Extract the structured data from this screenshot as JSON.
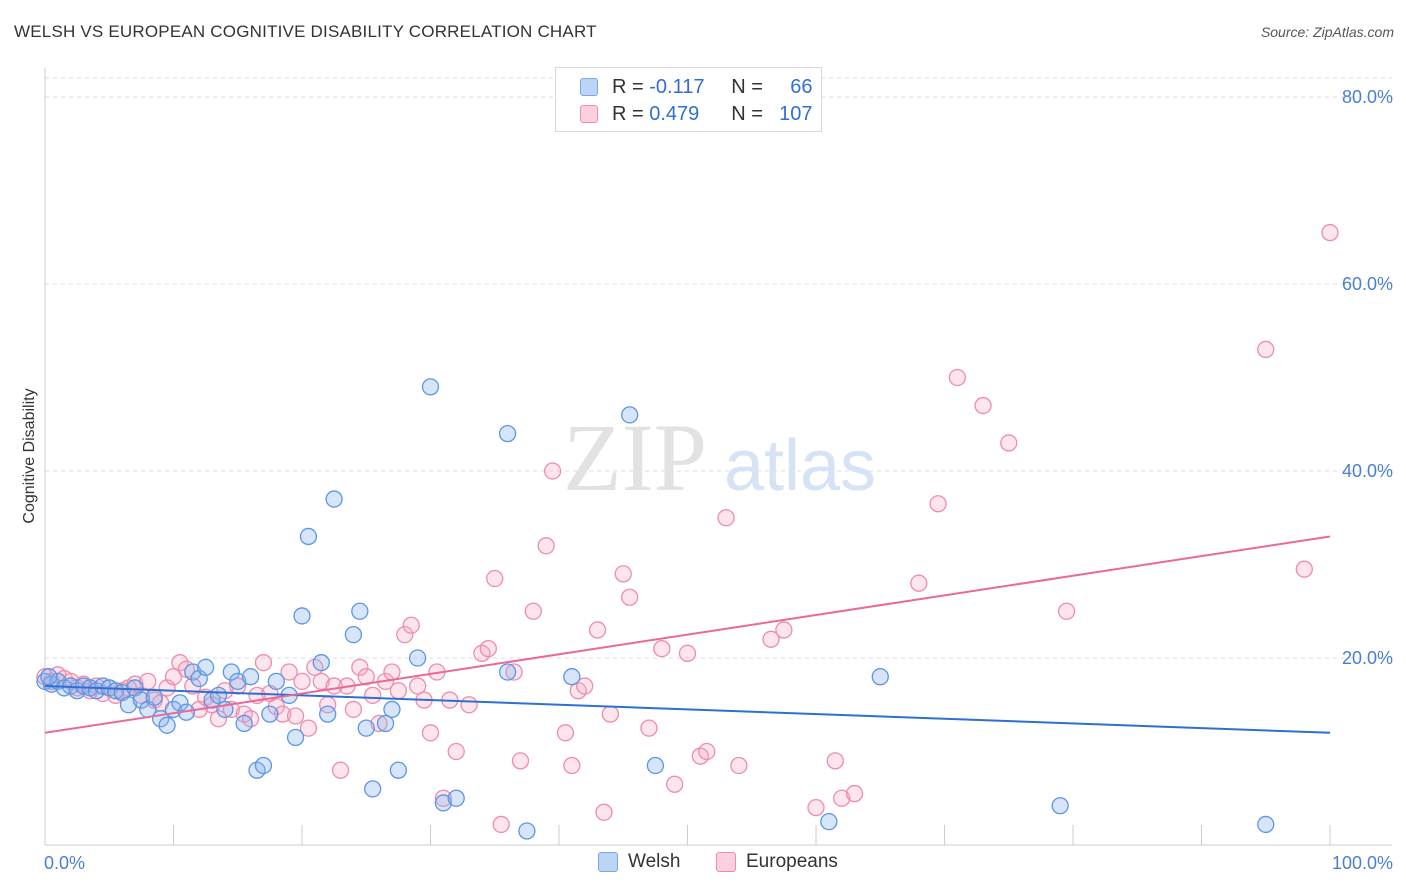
{
  "title": "WELSH VS EUROPEAN COGNITIVE DISABILITY CORRELATION CHART",
  "source": "Source: ZipAtlas.com",
  "watermark": {
    "zip": "ZIP",
    "atlas": "atlas"
  },
  "colors": {
    "welsh": "#5b95e6",
    "europeans": "#f08bab",
    "welsh_line": "#2f6fd1",
    "europeans_line": "#e8699a",
    "tick_label": "#4a7fd0"
  },
  "legend": {
    "welsh": {
      "r_label": "R =",
      "r_value": "-0.117",
      "n_label": "N =",
      "n_value": "66"
    },
    "europeans": {
      "r_label": "R =",
      "r_value": "0.479",
      "n_label": "N =",
      "n_value": "107"
    }
  },
  "bottom_legend": {
    "welsh": "Welsh",
    "europeans": "Europeans"
  },
  "chart_data": {
    "type": "scatter",
    "ylabel": "Cognitive Disability",
    "x_tick_labels": [
      "0.0%",
      "100.0%"
    ],
    "y_tick_labels": [
      "20.0%",
      "40.0%",
      "60.0%",
      "80.0%"
    ],
    "y_ticks": [
      20,
      40,
      60,
      80
    ],
    "xlim": [
      0,
      100
    ],
    "ylim": [
      0,
      82
    ],
    "grid": true,
    "legend_position": "top-center",
    "series": [
      {
        "name": "Welsh",
        "trend": [
          [
            0,
            17.0
          ],
          [
            100,
            12.0
          ]
        ],
        "points": [
          [
            0.0,
            17.5
          ],
          [
            0.5,
            17.2
          ],
          [
            1.0,
            17.5
          ],
          [
            1.5,
            16.8
          ],
          [
            2.0,
            17.0
          ],
          [
            2.5,
            16.5
          ],
          [
            3.0,
            17.0
          ],
          [
            3.5,
            16.8
          ],
          [
            4.0,
            16.5
          ],
          [
            4.5,
            17.0
          ],
          [
            5.0,
            16.8
          ],
          [
            5.5,
            16.5
          ],
          [
            6.0,
            16.3
          ],
          [
            6.5,
            15.0
          ],
          [
            7.0,
            16.8
          ],
          [
            7.5,
            15.5
          ],
          [
            8.0,
            14.5
          ],
          [
            8.5,
            15.8
          ],
          [
            9.0,
            13.5
          ],
          [
            9.5,
            12.8
          ],
          [
            10.0,
            14.5
          ],
          [
            10.5,
            15.2
          ],
          [
            11.0,
            14.2
          ],
          [
            11.5,
            18.5
          ],
          [
            12.0,
            17.8
          ],
          [
            12.5,
            19.0
          ],
          [
            13.0,
            15.5
          ],
          [
            13.5,
            16.0
          ],
          [
            14.0,
            14.5
          ],
          [
            14.5,
            18.5
          ],
          [
            15.0,
            17.5
          ],
          [
            15.5,
            13.0
          ],
          [
            16.0,
            18.0
          ],
          [
            16.5,
            8.0
          ],
          [
            17.0,
            8.5
          ],
          [
            17.5,
            14.0
          ],
          [
            18.0,
            17.5
          ],
          [
            19.0,
            16.0
          ],
          [
            19.5,
            11.5
          ],
          [
            20.0,
            24.5
          ],
          [
            20.5,
            33.0
          ],
          [
            21.5,
            19.5
          ],
          [
            22.0,
            14.0
          ],
          [
            22.5,
            37.0
          ],
          [
            24.0,
            22.5
          ],
          [
            24.5,
            25.0
          ],
          [
            25.0,
            12.5
          ],
          [
            25.5,
            6.0
          ],
          [
            26.5,
            13.0
          ],
          [
            27.0,
            14.5
          ],
          [
            27.5,
            8.0
          ],
          [
            29.0,
            20.0
          ],
          [
            30.0,
            49.0
          ],
          [
            31.0,
            4.5
          ],
          [
            32.0,
            5.0
          ],
          [
            36.0,
            44.0
          ],
          [
            37.5,
            1.5
          ],
          [
            36.0,
            18.5
          ],
          [
            41.0,
            18.0
          ],
          [
            45.5,
            46.0
          ],
          [
            47.5,
            8.5
          ],
          [
            65.0,
            18.0
          ],
          [
            61.0,
            2.5
          ],
          [
            79.0,
            4.2
          ],
          [
            95.0,
            2.2
          ],
          [
            0.3,
            18.0
          ]
        ]
      },
      {
        "name": "Europeans",
        "trend": [
          [
            0,
            12.0
          ],
          [
            100,
            33.0
          ]
        ],
        "points": [
          [
            0.0,
            18.0
          ],
          [
            0.5,
            17.5
          ],
          [
            1.0,
            18.2
          ],
          [
            1.5,
            17.8
          ],
          [
            2.0,
            17.5
          ],
          [
            2.5,
            16.8
          ],
          [
            3.0,
            17.2
          ],
          [
            3.5,
            16.5
          ],
          [
            4.0,
            17.0
          ],
          [
            4.5,
            16.2
          ],
          [
            5.0,
            16.8
          ],
          [
            5.5,
            16.0
          ],
          [
            6.0,
            16.5
          ],
          [
            6.5,
            16.8
          ],
          [
            7.0,
            17.2
          ],
          [
            7.5,
            16.0
          ],
          [
            8.0,
            17.5
          ],
          [
            8.5,
            15.5
          ],
          [
            9.0,
            15.2
          ],
          [
            9.5,
            16.8
          ],
          [
            10.0,
            18.0
          ],
          [
            10.5,
            19.5
          ],
          [
            11.0,
            18.8
          ],
          [
            11.5,
            17.0
          ],
          [
            12.0,
            14.5
          ],
          [
            12.5,
            15.8
          ],
          [
            13.0,
            15.0
          ],
          [
            13.5,
            13.5
          ],
          [
            14.0,
            16.5
          ],
          [
            14.5,
            14.5
          ],
          [
            15.0,
            17.0
          ],
          [
            15.5,
            14.0
          ],
          [
            16.0,
            13.5
          ],
          [
            16.5,
            16.0
          ],
          [
            17.0,
            19.5
          ],
          [
            17.5,
            16.2
          ],
          [
            18.0,
            14.8
          ],
          [
            18.5,
            14.0
          ],
          [
            19.0,
            18.5
          ],
          [
            19.5,
            13.8
          ],
          [
            20.0,
            17.5
          ],
          [
            20.5,
            12.5
          ],
          [
            21.0,
            19.0
          ],
          [
            21.5,
            17.5
          ],
          [
            22.0,
            15.0
          ],
          [
            22.5,
            17.0
          ],
          [
            23.0,
            8.0
          ],
          [
            23.5,
            17.0
          ],
          [
            24.0,
            14.5
          ],
          [
            24.5,
            19.0
          ],
          [
            25.0,
            18.0
          ],
          [
            25.5,
            16.0
          ],
          [
            26.0,
            13.0
          ],
          [
            26.5,
            17.5
          ],
          [
            27.0,
            18.5
          ],
          [
            27.5,
            16.5
          ],
          [
            28.0,
            22.5
          ],
          [
            28.5,
            23.5
          ],
          [
            29.0,
            17.0
          ],
          [
            29.5,
            15.5
          ],
          [
            30.0,
            12.0
          ],
          [
            30.5,
            18.5
          ],
          [
            31.0,
            5.0
          ],
          [
            31.5,
            15.5
          ],
          [
            32.0,
            10.0
          ],
          [
            33.0,
            15.0
          ],
          [
            34.0,
            20.5
          ],
          [
            34.5,
            21.0
          ],
          [
            35.0,
            28.5
          ],
          [
            35.5,
            2.2
          ],
          [
            36.5,
            18.5
          ],
          [
            37.0,
            9.0
          ],
          [
            38.0,
            25.0
          ],
          [
            39.0,
            32.0
          ],
          [
            39.5,
            40.0
          ],
          [
            40.5,
            12.0
          ],
          [
            41.0,
            8.5
          ],
          [
            41.5,
            16.5
          ],
          [
            42.0,
            17.0
          ],
          [
            43.0,
            23.0
          ],
          [
            43.5,
            3.5
          ],
          [
            44.0,
            14.0
          ],
          [
            45.0,
            29.0
          ],
          [
            45.5,
            26.5
          ],
          [
            47.0,
            12.5
          ],
          [
            48.0,
            21.0
          ],
          [
            49.0,
            6.5
          ],
          [
            50.0,
            20.5
          ],
          [
            51.0,
            9.5
          ],
          [
            51.5,
            10.0
          ],
          [
            53.0,
            35.0
          ],
          [
            54.0,
            8.5
          ],
          [
            56.5,
            22.0
          ],
          [
            57.5,
            23.0
          ],
          [
            60.0,
            4.0
          ],
          [
            61.5,
            9.0
          ],
          [
            62.0,
            5.0
          ],
          [
            63.0,
            5.5
          ],
          [
            68.0,
            28.0
          ],
          [
            69.5,
            36.5
          ],
          [
            71.0,
            50.0
          ],
          [
            73.0,
            47.0
          ],
          [
            75.0,
            43.0
          ],
          [
            79.5,
            25.0
          ],
          [
            95.0,
            53.0
          ],
          [
            98.0,
            29.5
          ],
          [
            100.0,
            65.5
          ]
        ]
      }
    ]
  }
}
